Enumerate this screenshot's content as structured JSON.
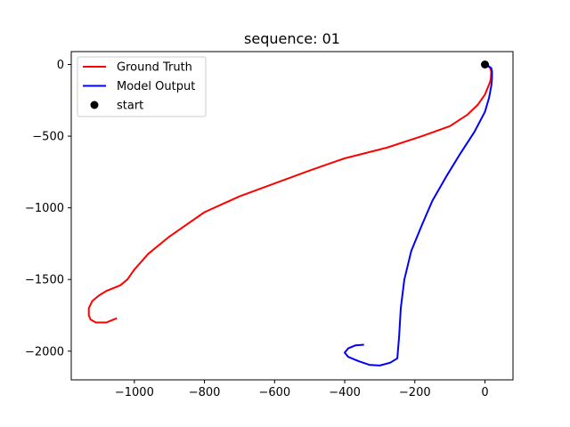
{
  "chart_data": {
    "type": "line",
    "title": "sequence: 01",
    "xlabel": "",
    "ylabel": "",
    "xlim": [
      -1180,
      80
    ],
    "ylim": [
      -2200,
      90
    ],
    "xticks": [
      -1000,
      -800,
      -600,
      -400,
      -200,
      0
    ],
    "yticks": [
      0,
      -500,
      -1000,
      -1500,
      -2000
    ],
    "xtick_labels": [
      "−1000",
      "−800",
      "−600",
      "−400",
      "−200",
      "0"
    ],
    "ytick_labels": [
      "0",
      "−500",
      "−1000",
      "−1500",
      "−2000"
    ],
    "grid": false,
    "legend_position": "top-left",
    "series": [
      {
        "name": "Ground Truth",
        "color": "#ff0000",
        "x": [
          0,
          8,
          15,
          18,
          17,
          15,
          10,
          0,
          -20,
          -50,
          -100,
          -180,
          -280,
          -400,
          -500,
          -600,
          -700,
          -800,
          -900,
          -960,
          -1000,
          -1020,
          -1040,
          -1060,
          -1080,
          -1100,
          -1120,
          -1130,
          -1130,
          -1125,
          -1110,
          -1080,
          -1050
        ],
        "y": [
          0,
          -10,
          -25,
          -50,
          -90,
          -120,
          -150,
          -210,
          -280,
          -350,
          -430,
          -500,
          -580,
          -655,
          -740,
          -830,
          -920,
          -1030,
          -1200,
          -1320,
          -1430,
          -1500,
          -1540,
          -1560,
          -1580,
          -1610,
          -1650,
          -1700,
          -1750,
          -1780,
          -1800,
          -1800,
          -1770
        ]
      },
      {
        "name": "Model Output",
        "color": "#0000ff",
        "x": [
          0,
          10,
          18,
          20,
          20,
          18,
          12,
          0,
          -30,
          -70,
          -110,
          -150,
          -180,
          -210,
          -230,
          -240,
          -245,
          -250,
          -270,
          -300,
          -330,
          -360,
          -390,
          -400,
          -390,
          -370,
          -345
        ],
        "y": [
          0,
          -10,
          -25,
          -50,
          -100,
          -150,
          -230,
          -330,
          -470,
          -620,
          -780,
          -950,
          -1120,
          -1300,
          -1500,
          -1700,
          -1900,
          -2050,
          -2080,
          -2100,
          -2095,
          -2070,
          -2040,
          -2010,
          -1980,
          -1960,
          -1955
        ]
      },
      {
        "name": "start",
        "color": "#000000",
        "marker": "circle",
        "x": [
          0
        ],
        "y": [
          0
        ]
      }
    ]
  }
}
